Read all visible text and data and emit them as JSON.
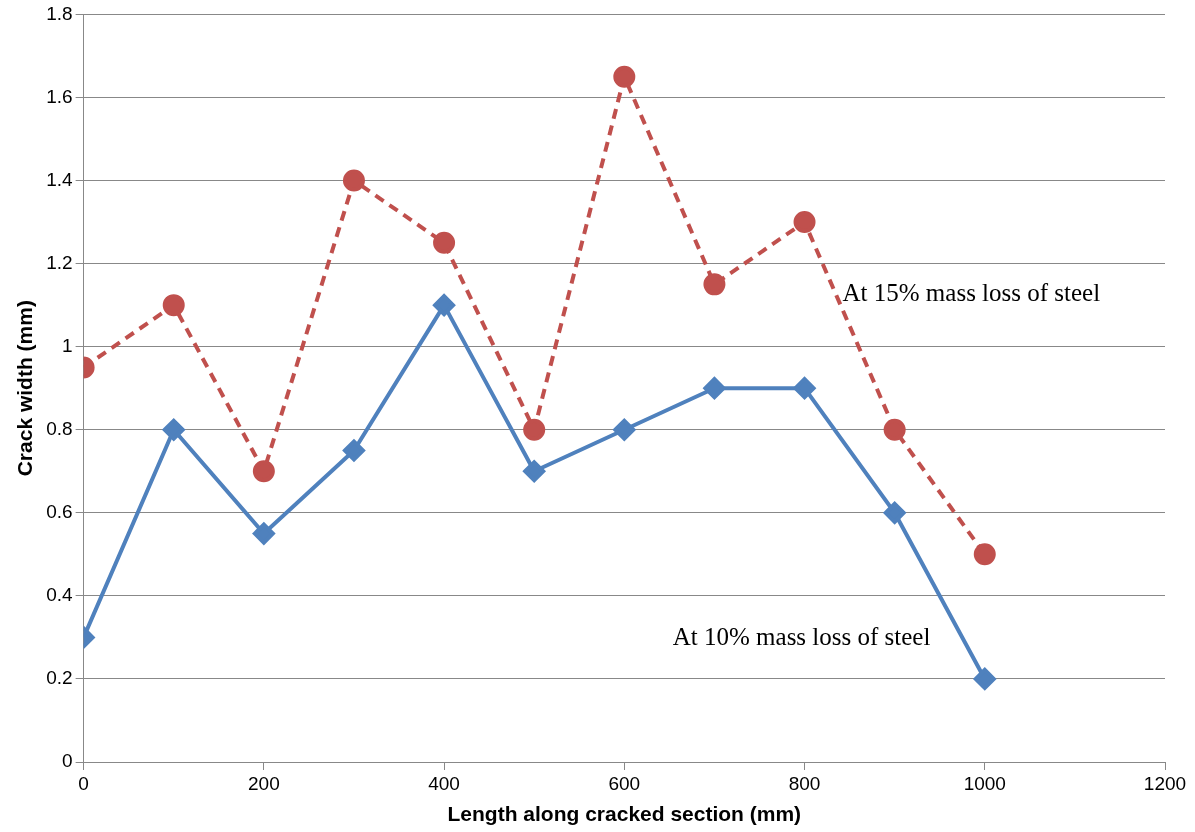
{
  "chart_data": {
    "type": "line",
    "xlabel": "Length along cracked section (mm)",
    "ylabel": "Crack width (mm)",
    "x": [
      0,
      100,
      200,
      300,
      400,
      500,
      600,
      700,
      800,
      900,
      1000
    ],
    "series": [
      {
        "name": "At 10% mass loss of steel",
        "color": "#4f81bd",
        "marker": "diamond",
        "line_style": "solid",
        "values": [
          0.3,
          0.8,
          0.55,
          0.75,
          1.1,
          0.7,
          0.8,
          0.9,
          0.9,
          0.6,
          0.2
        ]
      },
      {
        "name": "At 15% mass loss of steel",
        "color": "#c0504d",
        "marker": "circle",
        "line_style": "dashed",
        "values": [
          0.95,
          1.1,
          0.7,
          1.4,
          1.25,
          0.8,
          1.65,
          1.15,
          1.3,
          0.8,
          0.5
        ]
      }
    ],
    "xlim": [
      0,
      1200
    ],
    "xticks": [
      0,
      200,
      400,
      600,
      800,
      1000,
      1200
    ],
    "ylim": [
      0,
      1.8
    ],
    "yticks": [
      0,
      0.2,
      0.4,
      0.6,
      0.8,
      1,
      1.2,
      1.4,
      1.6,
      1.8
    ],
    "grid": "y",
    "legend": false
  }
}
